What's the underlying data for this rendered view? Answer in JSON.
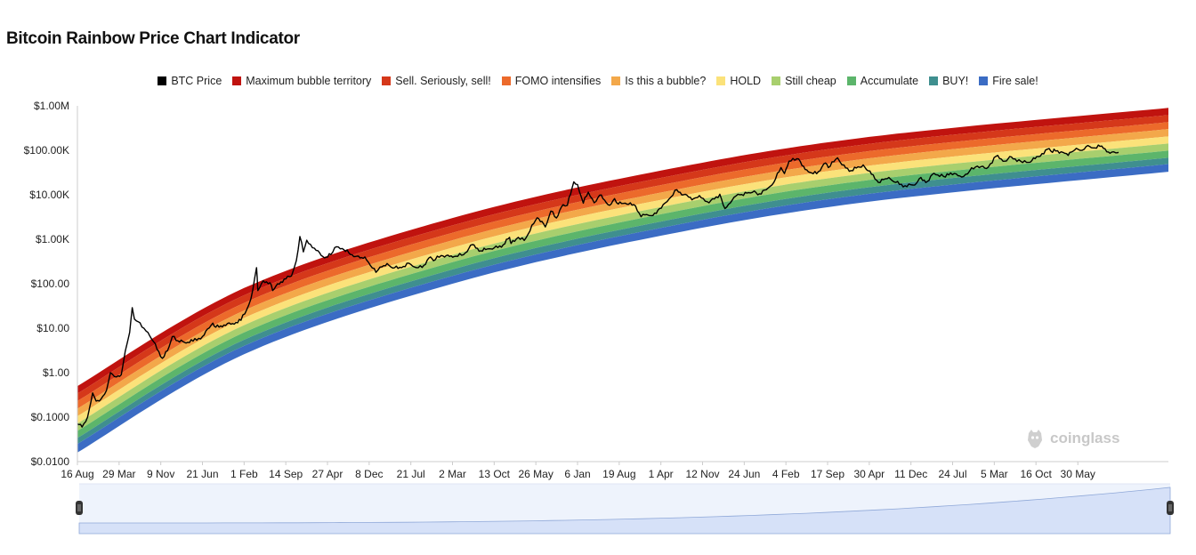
{
  "title": "Bitcoin Rainbow Price Chart Indicator",
  "watermark": "coinglass",
  "chart_data": {
    "type": "line",
    "yscale": "log",
    "ylim": [
      0.01,
      1000000
    ],
    "ytick_values": [
      0.01,
      0.1,
      1,
      10,
      100,
      1000,
      10000,
      100000,
      1000000
    ],
    "ytick_labels": [
      "$0.0100",
      "$0.1000",
      "$1.00",
      "$10.00",
      "$100.00",
      "$1.00K",
      "$10.00K",
      "$100.00K",
      "$1.00M"
    ],
    "xlim": [
      "2010-08-16",
      "2026-10-01"
    ],
    "xtick_dates": [
      "2010-08-16",
      "2011-03-29",
      "2011-11-09",
      "2012-06-21",
      "2013-02-01",
      "2013-09-14",
      "2014-04-27",
      "2014-12-08",
      "2015-07-21",
      "2016-03-02",
      "2016-10-13",
      "2017-05-26",
      "2018-01-06",
      "2018-08-19",
      "2019-04-01",
      "2019-11-12",
      "2020-06-24",
      "2021-02-04",
      "2021-09-17",
      "2022-04-30",
      "2022-12-11",
      "2023-07-24",
      "2024-03-05",
      "2024-10-16",
      "2025-05-30"
    ],
    "xtick_labels": [
      "16 Aug",
      "29 Mar",
      "9 Nov",
      "21 Jun",
      "1 Feb",
      "14 Sep",
      "27 Apr",
      "8 Dec",
      "21 Jul",
      "2 Mar",
      "13 Oct",
      "26 May",
      "6 Jan",
      "19 Aug",
      "1 Apr",
      "12 Nov",
      "24 Jun",
      "4 Feb",
      "17 Sep",
      "30 Apr",
      "11 Dec",
      "24 Jul",
      "5 Mar",
      "16 Oct",
      "30 May"
    ],
    "legend_position": "top-center",
    "grid": false,
    "bands": [
      {
        "name": "Maximum bubble territory",
        "color": "#c0130f",
        "upper": [
          [
            "2010-08-16",
            0.5
          ],
          [
            "2013-02-01",
            80
          ],
          [
            "2016-03-02",
            3000
          ],
          [
            "2019-04-01",
            35000
          ],
          [
            "2022-04-30",
            200000
          ],
          [
            "2026-10-01",
            900000
          ]
        ]
      },
      {
        "name": "Sell. Seriously, sell!",
        "color": "#d5381a",
        "upper": [
          [
            "2010-08-16",
            0.34
          ],
          [
            "2013-02-01",
            55
          ],
          [
            "2016-03-02",
            2050
          ],
          [
            "2019-04-01",
            24000
          ],
          [
            "2022-04-30",
            140000
          ],
          [
            "2026-10-01",
            620000
          ]
        ]
      },
      {
        "name": "FOMO intensifies",
        "color": "#ec6a2b",
        "upper": [
          [
            "2010-08-16",
            0.23
          ],
          [
            "2013-02-01",
            37
          ],
          [
            "2016-03-02",
            1400
          ],
          [
            "2019-04-01",
            16500
          ],
          [
            "2022-04-30",
            96000
          ],
          [
            "2026-10-01",
            430000
          ]
        ]
      },
      {
        "name": "Is this a bubble?",
        "color": "#f3a84a",
        "upper": [
          [
            "2010-08-16",
            0.155
          ],
          [
            "2013-02-01",
            25
          ],
          [
            "2016-03-02",
            950
          ],
          [
            "2019-04-01",
            11200
          ],
          [
            "2022-04-30",
            66000
          ],
          [
            "2026-10-01",
            300000
          ]
        ]
      },
      {
        "name": "HOLD",
        "color": "#fbe27a",
        "upper": [
          [
            "2010-08-16",
            0.105
          ],
          [
            "2013-02-01",
            17
          ],
          [
            "2016-03-02",
            650
          ],
          [
            "2019-04-01",
            7700
          ],
          [
            "2022-04-30",
            45000
          ],
          [
            "2026-10-01",
            205000
          ]
        ]
      },
      {
        "name": "Still cheap",
        "color": "#a8cf6e",
        "upper": [
          [
            "2010-08-16",
            0.072
          ],
          [
            "2013-02-01",
            11.7
          ],
          [
            "2016-03-02",
            445
          ],
          [
            "2019-04-01",
            5300
          ],
          [
            "2022-04-30",
            31000
          ],
          [
            "2026-10-01",
            142000
          ]
        ]
      },
      {
        "name": "Accumulate",
        "color": "#5cb56b",
        "upper": [
          [
            "2010-08-16",
            0.049
          ],
          [
            "2013-02-01",
            8
          ],
          [
            "2016-03-02",
            305
          ],
          [
            "2019-04-01",
            3650
          ],
          [
            "2022-04-30",
            21500
          ],
          [
            "2026-10-01",
            98000
          ]
        ]
      },
      {
        "name": "BUY!",
        "color": "#3f8f8f",
        "upper": [
          [
            "2010-08-16",
            0.034
          ],
          [
            "2013-02-01",
            5.5
          ],
          [
            "2016-03-02",
            210
          ],
          [
            "2019-04-01",
            2500
          ],
          [
            "2022-04-30",
            14800
          ],
          [
            "2026-10-01",
            68000
          ]
        ]
      },
      {
        "name": "Fire sale!",
        "color": "#3b6cc4",
        "upper": [
          [
            "2010-08-16",
            0.025
          ],
          [
            "2013-02-01",
            4
          ],
          [
            "2016-03-02",
            150
          ],
          [
            "2019-04-01",
            1800
          ],
          [
            "2022-04-30",
            10500
          ],
          [
            "2026-10-01",
            49000
          ]
        ]
      }
    ],
    "band_floor": [
      [
        "2010-08-16",
        0.016
      ],
      [
        "2013-02-01",
        2.6
      ],
      [
        "2016-03-02",
        100
      ],
      [
        "2019-04-01",
        1200
      ],
      [
        "2022-04-30",
        7000
      ],
      [
        "2026-10-01",
        33000
      ]
    ],
    "series": [
      {
        "name": "BTC Price",
        "color": "#000000",
        "points": [
          [
            "2010-08-16",
            0.07
          ],
          [
            "2010-09-10",
            0.06
          ],
          [
            "2010-10-10",
            0.1
          ],
          [
            "2010-11-06",
            0.35
          ],
          [
            "2010-11-25",
            0.23
          ],
          [
            "2010-12-20",
            0.25
          ],
          [
            "2011-01-20",
            0.4
          ],
          [
            "2011-02-10",
            1.0
          ],
          [
            "2011-03-15",
            0.8
          ],
          [
            "2011-04-10",
            0.9
          ],
          [
            "2011-05-01",
            3
          ],
          [
            "2011-05-25",
            8
          ],
          [
            "2011-06-08",
            29
          ],
          [
            "2011-06-20",
            16
          ],
          [
            "2011-07-10",
            14
          ],
          [
            "2011-08-10",
            10
          ],
          [
            "2011-09-01",
            8
          ],
          [
            "2011-10-01",
            5
          ],
          [
            "2011-11-18",
            2.1
          ],
          [
            "2011-12-15",
            3.1
          ],
          [
            "2012-01-10",
            6.5
          ],
          [
            "2012-02-10",
            5.2
          ],
          [
            "2012-03-15",
            4.8
          ],
          [
            "2012-05-01",
            5.1
          ],
          [
            "2012-06-21",
            6.5
          ],
          [
            "2012-08-16",
            13
          ],
          [
            "2012-09-01",
            10.5
          ],
          [
            "2012-10-15",
            11.8
          ],
          [
            "2012-12-01",
            12.7
          ],
          [
            "2013-01-15",
            15
          ],
          [
            "2013-02-15",
            26
          ],
          [
            "2013-03-10",
            46
          ],
          [
            "2013-04-09",
            230
          ],
          [
            "2013-04-16",
            70
          ],
          [
            "2013-05-15",
            117
          ],
          [
            "2013-06-20",
            105
          ],
          [
            "2013-07-05",
            70
          ],
          [
            "2013-08-01",
            100
          ],
          [
            "2013-09-14",
            128
          ],
          [
            "2013-10-15",
            150
          ],
          [
            "2013-11-10",
            330
          ],
          [
            "2013-11-29",
            1150
          ],
          [
            "2013-12-18",
            520
          ],
          [
            "2014-01-05",
            950
          ],
          [
            "2014-02-25",
            560
          ],
          [
            "2014-04-11",
            380
          ],
          [
            "2014-05-15",
            450
          ],
          [
            "2014-06-05",
            650
          ],
          [
            "2014-07-15",
            620
          ],
          [
            "2014-08-20",
            500
          ],
          [
            "2014-09-25",
            410
          ],
          [
            "2014-10-20",
            380
          ],
          [
            "2014-11-15",
            400
          ],
          [
            "2015-01-14",
            180
          ],
          [
            "2015-02-15",
            240
          ],
          [
            "2015-03-15",
            285
          ],
          [
            "2015-04-15",
            225
          ],
          [
            "2015-06-01",
            230
          ],
          [
            "2015-07-10",
            290
          ],
          [
            "2015-08-20",
            230
          ],
          [
            "2015-09-20",
            232
          ],
          [
            "2015-11-04",
            400
          ],
          [
            "2015-11-20",
            330
          ],
          [
            "2016-01-01",
            430
          ],
          [
            "2016-02-15",
            410
          ],
          [
            "2016-03-20",
            415
          ],
          [
            "2016-05-01",
            450
          ],
          [
            "2016-06-17",
            760
          ],
          [
            "2016-08-02",
            550
          ],
          [
            "2016-09-15",
            610
          ],
          [
            "2016-10-13",
            640
          ],
          [
            "2016-12-01",
            750
          ],
          [
            "2017-01-04",
            1100
          ],
          [
            "2017-01-12",
            800
          ],
          [
            "2017-02-20",
            1100
          ],
          [
            "2017-03-24",
            940
          ],
          [
            "2017-05-25",
            2700
          ],
          [
            "2017-06-11",
            2900
          ],
          [
            "2017-07-16",
            1900
          ],
          [
            "2017-08-15",
            4300
          ],
          [
            "2017-09-14",
            3000
          ],
          [
            "2017-10-20",
            6000
          ],
          [
            "2017-11-12",
            5800
          ],
          [
            "2017-12-17",
            19500
          ],
          [
            "2018-01-06",
            17000
          ],
          [
            "2018-02-06",
            6500
          ],
          [
            "2018-03-05",
            11500
          ],
          [
            "2018-04-06",
            6600
          ],
          [
            "2018-05-05",
            9800
          ],
          [
            "2018-06-29",
            5800
          ],
          [
            "2018-07-25",
            8200
          ],
          [
            "2018-08-14",
            6200
          ],
          [
            "2018-09-20",
            6500
          ],
          [
            "2018-11-15",
            5600
          ],
          [
            "2018-12-15",
            3200
          ],
          [
            "2019-01-15",
            3600
          ],
          [
            "2019-02-08",
            3400
          ],
          [
            "2019-04-03",
            5000
          ],
          [
            "2019-05-15",
            8000
          ],
          [
            "2019-06-26",
            13000
          ],
          [
            "2019-08-01",
            10000
          ],
          [
            "2019-09-25",
            8200
          ],
          [
            "2019-10-26",
            9600
          ],
          [
            "2019-12-17",
            6600
          ],
          [
            "2020-02-13",
            10300
          ],
          [
            "2020-03-12",
            4900
          ],
          [
            "2020-04-29",
            8700
          ],
          [
            "2020-06-01",
            10000
          ],
          [
            "2020-07-27",
            11000
          ],
          [
            "2020-08-17",
            12200
          ],
          [
            "2020-09-05",
            10000
          ],
          [
            "2020-10-21",
            13000
          ],
          [
            "2020-12-01",
            19000
          ],
          [
            "2021-01-08",
            41000
          ],
          [
            "2021-01-27",
            30000
          ],
          [
            "2021-02-21",
            57000
          ],
          [
            "2021-04-14",
            64000
          ],
          [
            "2021-05-19",
            37000
          ],
          [
            "2021-06-22",
            31000
          ],
          [
            "2021-07-20",
            29800
          ],
          [
            "2021-09-06",
            52000
          ],
          [
            "2021-09-21",
            41000
          ],
          [
            "2021-11-10",
            68000
          ],
          [
            "2021-12-04",
            47000
          ],
          [
            "2022-01-22",
            35000
          ],
          [
            "2022-03-28",
            47000
          ],
          [
            "2022-05-12",
            29000
          ],
          [
            "2022-06-18",
            19000
          ],
          [
            "2022-08-14",
            24500
          ],
          [
            "2022-09-20",
            19000
          ],
          [
            "2022-11-09",
            16000
          ],
          [
            "2022-12-31",
            16500
          ],
          [
            "2023-01-25",
            23000
          ],
          [
            "2023-03-10",
            20000
          ],
          [
            "2023-04-14",
            30500
          ],
          [
            "2023-06-15",
            25000
          ],
          [
            "2023-07-13",
            31000
          ],
          [
            "2023-09-11",
            25000
          ],
          [
            "2023-10-24",
            34500
          ],
          [
            "2023-12-05",
            44000
          ],
          [
            "2024-01-23",
            39000
          ],
          [
            "2024-03-14",
            73000
          ],
          [
            "2024-05-01",
            57000
          ],
          [
            "2024-06-05",
            71000
          ],
          [
            "2024-08-05",
            53000
          ],
          [
            "2024-09-06",
            53500
          ],
          [
            "2024-10-29",
            72000
          ],
          [
            "2024-12-17",
            106000
          ],
          [
            "2025-01-13",
            90000
          ],
          [
            "2025-01-21",
            106000
          ],
          [
            "2025-04-08",
            77000
          ],
          [
            "2025-05-22",
            111000
          ],
          [
            "2025-06-22",
            100000
          ],
          [
            "2025-07-14",
            122000
          ],
          [
            "2025-08-20",
            113000
          ],
          [
            "2025-10-06",
            125000
          ],
          [
            "2025-11-20",
            86000
          ],
          [
            "2025-12-20",
            88000
          ],
          [
            "2026-01-05",
            90000
          ]
        ]
      }
    ]
  },
  "legend": [
    {
      "label": "BTC Price",
      "color": "#000000"
    },
    {
      "label": "Maximum bubble territory",
      "color": "#c0130f"
    },
    {
      "label": "Sell. Seriously, sell!",
      "color": "#d5381a"
    },
    {
      "label": "FOMO intensifies",
      "color": "#ec6a2b"
    },
    {
      "label": "Is this a bubble?",
      "color": "#f3a84a"
    },
    {
      "label": "HOLD",
      "color": "#fbe27a"
    },
    {
      "label": "Still cheap",
      "color": "#a8cf6e"
    },
    {
      "label": "Accumulate",
      "color": "#5cb56b"
    },
    {
      "label": "BUY!",
      "color": "#3f8f8f"
    },
    {
      "label": "Fire sale!",
      "color": "#3b6cc4"
    }
  ],
  "navigator": {
    "handle_left_icon": "grip-icon",
    "handle_right_icon": "grip-icon"
  }
}
